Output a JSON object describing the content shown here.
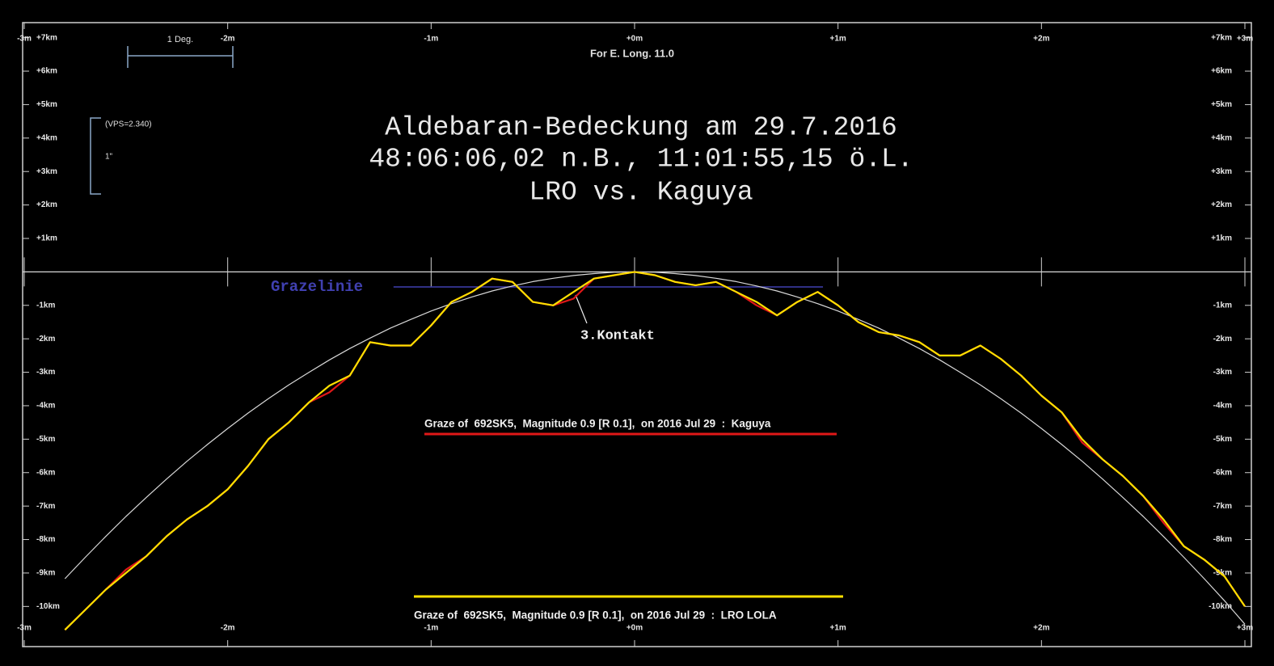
{
  "chart_data": {
    "type": "line",
    "title": [
      "Aldebaran-Bedeckung am 29.7.2016",
      "48:06:06,02 n.B., 11:01:55,15 ö.L.",
      "LRO vs. Kaguya"
    ],
    "annotations": {
      "longitude": "For E. Long. 11.0",
      "scale": "1 Deg.",
      "vps": "(VPS=2.340)",
      "arcsec": "1\"",
      "contact": "3.Kontakt"
    },
    "graze_line": {
      "text": "Grazelinie",
      "color": "#4040b0",
      "x": [
        -1.185,
        0.926
      ],
      "y": -0.45
    },
    "xlim": [
      -3,
      3
    ],
    "ylim": [
      -11.2,
      7.45
    ],
    "xticks": [
      {
        "value": -3,
        "label": "-3m"
      },
      {
        "value": -2,
        "label": "-2m"
      },
      {
        "value": -1,
        "label": "-1m"
      },
      {
        "value": 0,
        "label": "+0m"
      },
      {
        "value": 1,
        "label": "+1m"
      },
      {
        "value": 2,
        "label": "+2m"
      },
      {
        "value": 3,
        "label": "+3m"
      }
    ],
    "yticks": [
      {
        "value": 7,
        "label": "+7km"
      },
      {
        "value": 6,
        "label": "+6km"
      },
      {
        "value": 5,
        "label": "+5km"
      },
      {
        "value": 4,
        "label": "+4km"
      },
      {
        "value": 3,
        "label": "+3km"
      },
      {
        "value": 2,
        "label": "+2km"
      },
      {
        "value": 1,
        "label": "+1km"
      },
      {
        "value": -1,
        "label": "-1km"
      },
      {
        "value": -2,
        "label": "-2km"
      },
      {
        "value": -3,
        "label": "-3km"
      },
      {
        "value": -4,
        "label": "-4km"
      },
      {
        "value": -5,
        "label": "-5km"
      },
      {
        "value": -6,
        "label": "-6km"
      },
      {
        "value": -7,
        "label": "-7km"
      },
      {
        "value": -8,
        "label": "-8km"
      },
      {
        "value": -9,
        "label": "-9km"
      },
      {
        "value": -10,
        "label": "-10km"
      }
    ],
    "x": [
      -2.8,
      -2.7,
      -2.6,
      -2.5,
      -2.4,
      -2.3,
      -2.2,
      -2.1,
      -2.0,
      -1.9,
      -1.8,
      -1.7,
      -1.6,
      -1.5,
      -1.4,
      -1.3,
      -1.2,
      -1.1,
      -1.0,
      -0.9,
      -0.8,
      -0.7,
      -0.6,
      -0.5,
      -0.4,
      -0.3,
      -0.2,
      -0.1,
      0.0,
      0.1,
      0.2,
      0.3,
      0.4,
      0.5,
      0.6,
      0.7,
      0.8,
      0.9,
      1.0,
      1.1,
      1.2,
      1.3,
      1.4,
      1.5,
      1.6,
      1.7,
      1.8,
      1.9,
      2.0,
      2.1,
      2.2,
      2.3,
      2.4,
      2.5,
      2.6,
      2.7,
      2.8,
      2.9,
      3.0
    ],
    "series": [
      {
        "color": "#d8d8d8",
        "values": [
          -9.17,
          -8.53,
          -7.91,
          -7.31,
          -6.74,
          -6.19,
          -5.66,
          -5.16,
          -4.68,
          -4.22,
          -3.79,
          -3.38,
          -3.0,
          -2.63,
          -2.29,
          -1.98,
          -1.68,
          -1.42,
          -1.17,
          -0.95,
          -0.75,
          -0.57,
          -0.42,
          -0.29,
          -0.19,
          -0.11,
          -0.05,
          -0.01,
          0,
          -0.01,
          -0.05,
          -0.11,
          -0.19,
          -0.29,
          -0.42,
          -0.57,
          -0.75,
          -0.95,
          -1.17,
          -1.42,
          -1.68,
          -1.98,
          -2.29,
          -2.63,
          -3.0,
          -3.38,
          -3.79,
          -4.22,
          -4.68,
          -5.16,
          -5.66,
          -6.19,
          -6.74,
          -7.31,
          -7.91,
          -8.53,
          -9.17,
          -9.83,
          -10.53
        ]
      },
      {
        "name": "Graze of  692SK5,  Magnitude 0.9 [R 0.1],  on 2016 Jul 29  :  Kaguya",
        "color": "#e01818",
        "values": [
          -10.7,
          -10.1,
          -9.5,
          -8.9,
          -8.5,
          -7.9,
          -7.4,
          -7.0,
          -6.5,
          -5.8,
          -5.0,
          -4.5,
          -3.9,
          -3.6,
          -3.1,
          -2.1,
          -2.2,
          -2.2,
          -1.6,
          -0.9,
          -0.6,
          -0.2,
          -0.3,
          -0.9,
          -1.0,
          -0.8,
          -0.2,
          -0.1,
          0.0,
          -0.1,
          -0.3,
          -0.4,
          -0.3,
          -0.6,
          -1.0,
          -1.3,
          -0.9,
          -0.6,
          -1.0,
          -1.5,
          -1.8,
          -1.9,
          -2.1,
          -2.5,
          -2.5,
          -2.2,
          -2.6,
          -3.1,
          -3.7,
          -4.2,
          -5.1,
          -5.6,
          -6.1,
          -6.7,
          -7.5,
          -8.2,
          -8.6,
          -9.1,
          -10.0
        ]
      },
      {
        "name": "Graze of  692SK5,  Magnitude 0.9 [R 0.1],  on 2016 Jul 29  :  LRO LOLA",
        "color": "#ffe000",
        "values": [
          -10.7,
          -10.1,
          -9.5,
          -9.0,
          -8.5,
          -7.9,
          -7.4,
          -7.0,
          -6.5,
          -5.8,
          -5.0,
          -4.5,
          -3.9,
          -3.4,
          -3.1,
          -2.1,
          -2.2,
          -2.2,
          -1.6,
          -0.9,
          -0.6,
          -0.2,
          -0.3,
          -0.9,
          -1.0,
          -0.6,
          -0.2,
          -0.1,
          0.0,
          -0.1,
          -0.3,
          -0.4,
          -0.3,
          -0.6,
          -0.9,
          -1.3,
          -0.9,
          -0.6,
          -1.0,
          -1.5,
          -1.8,
          -1.9,
          -2.1,
          -2.5,
          -2.5,
          -2.2,
          -2.6,
          -3.1,
          -3.7,
          -4.2,
          -5.0,
          -5.6,
          -6.1,
          -6.7,
          -7.4,
          -8.2,
          -8.6,
          -9.1,
          -10.0
        ]
      }
    ]
  }
}
